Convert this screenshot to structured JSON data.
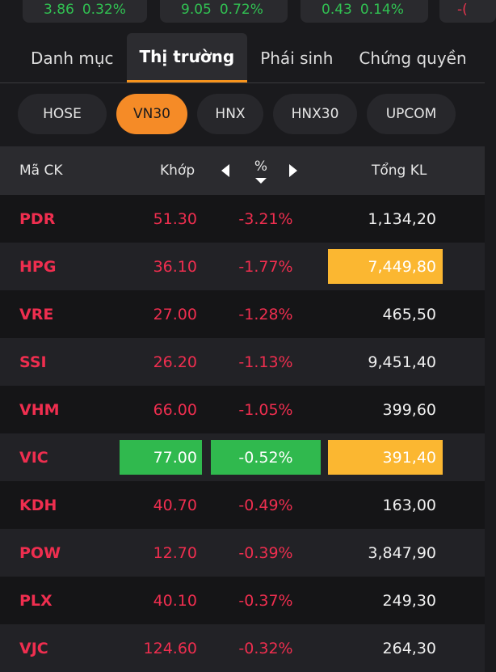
{
  "index_cards": [
    {
      "value": "3.86",
      "pct": "0.32%"
    },
    {
      "value": "9.05",
      "pct": "0.72%"
    },
    {
      "value": "0.43",
      "pct": "0.14%"
    },
    {
      "value": "-(",
      "pct": ""
    }
  ],
  "tabs": [
    {
      "label": "Danh mục",
      "active": false
    },
    {
      "label": "Thị trường",
      "active": true
    },
    {
      "label": "Phái sinh",
      "active": false
    },
    {
      "label": "Chứng quyền",
      "active": false
    }
  ],
  "exchanges": [
    {
      "label": "HOSE",
      "active": false
    },
    {
      "label": "VN30",
      "active": true
    },
    {
      "label": "HNX",
      "active": false
    },
    {
      "label": "HNX30",
      "active": false
    },
    {
      "label": "UPCOM",
      "active": false
    }
  ],
  "table": {
    "headers": {
      "code": "Mã CK",
      "price": "Khớp",
      "pct": "%",
      "volume": "Tổng KL"
    },
    "rows": [
      {
        "code": "PDR",
        "price": "51.30",
        "pct": "-3.21%",
        "volume": "1,134,20",
        "price_hl": "",
        "pct_hl": "",
        "vol_hl": ""
      },
      {
        "code": "HPG",
        "price": "36.10",
        "pct": "-1.77%",
        "volume": "7,449,80",
        "price_hl": "",
        "pct_hl": "",
        "vol_hl": "yellow"
      },
      {
        "code": "VRE",
        "price": "27.00",
        "pct": "-1.28%",
        "volume": "465,50",
        "price_hl": "",
        "pct_hl": "",
        "vol_hl": ""
      },
      {
        "code": "SSI",
        "price": "26.20",
        "pct": "-1.13%",
        "volume": "9,451,40",
        "price_hl": "",
        "pct_hl": "",
        "vol_hl": ""
      },
      {
        "code": "VHM",
        "price": "66.00",
        "pct": "-1.05%",
        "volume": "399,60",
        "price_hl": "",
        "pct_hl": "",
        "vol_hl": ""
      },
      {
        "code": "VIC",
        "price": "77.00",
        "pct": "-0.52%",
        "volume": "391,40",
        "price_hl": "green",
        "pct_hl": "green",
        "vol_hl": "yellow"
      },
      {
        "code": "KDH",
        "price": "40.70",
        "pct": "-0.49%",
        "volume": "163,00",
        "price_hl": "",
        "pct_hl": "",
        "vol_hl": ""
      },
      {
        "code": "POW",
        "price": "12.70",
        "pct": "-0.39%",
        "volume": "3,847,90",
        "price_hl": "",
        "pct_hl": "",
        "vol_hl": ""
      },
      {
        "code": "PLX",
        "price": "40.10",
        "pct": "-0.37%",
        "volume": "249,30",
        "price_hl": "",
        "pct_hl": "",
        "vol_hl": ""
      },
      {
        "code": "VJC",
        "price": "124.60",
        "pct": "-0.32%",
        "volume": "264,30",
        "price_hl": "",
        "pct_hl": "",
        "vol_hl": ""
      }
    ]
  },
  "colors": {
    "accent": "#f58b27",
    "down": "#ef2e4f",
    "up": "#31c152",
    "highlight_green": "#30b94e",
    "highlight_yellow": "#fbb731"
  }
}
